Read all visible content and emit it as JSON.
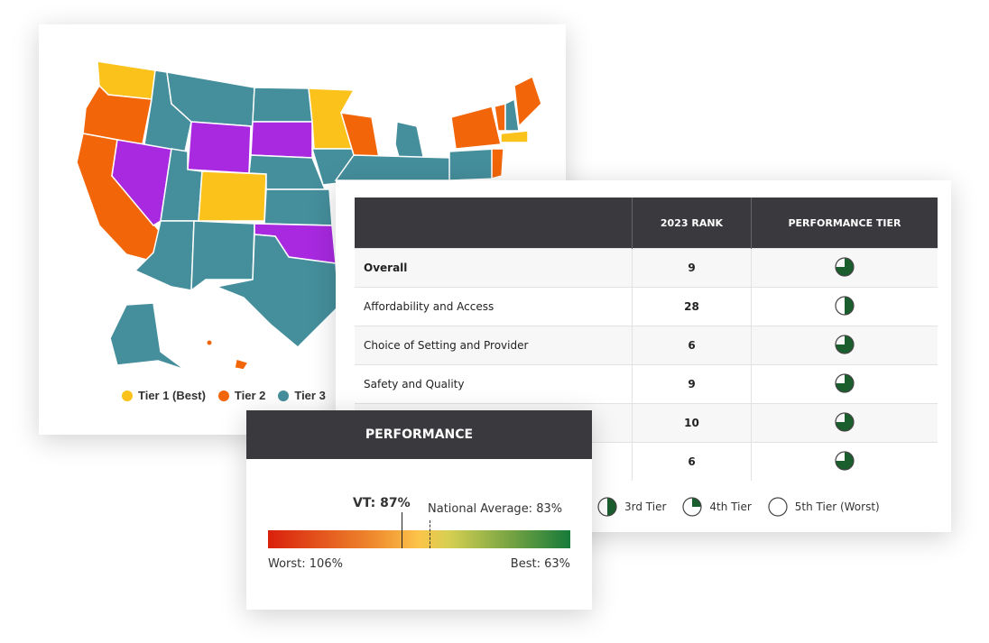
{
  "map": {
    "legend": [
      {
        "label": "Tier 1 (Best)",
        "color": "#fbc21b"
      },
      {
        "label": "Tier 2",
        "color": "#f26509"
      },
      {
        "label": "Tier 3",
        "color": "#458e9c"
      }
    ],
    "other_colors": {
      "tier4": "#a829e0"
    }
  },
  "table": {
    "headers": [
      "",
      "2023 RANK",
      "PERFORMANCE TIER"
    ],
    "rows": [
      {
        "label": "Overall",
        "rank": "9",
        "tier_fill": 0.75,
        "bold": true
      },
      {
        "label": "Affordability and Access",
        "rank": "28",
        "tier_fill": 0.5
      },
      {
        "label": "Choice of Setting and Provider",
        "rank": "6",
        "tier_fill": 0.75
      },
      {
        "label": "Safety and Quality",
        "rank": "9",
        "tier_fill": 0.75
      },
      {
        "label": "",
        "rank": "10",
        "tier_fill": 0.75
      },
      {
        "label": "",
        "rank": "6",
        "tier_fill": 0.75
      }
    ],
    "legend": [
      {
        "label": "3rd Tier",
        "fill": 0.5
      },
      {
        "label": "4th Tier",
        "fill": 0.25
      },
      {
        "label": "5th Tier (Worst)",
        "fill": 0
      }
    ],
    "accent": "#1b5e2e"
  },
  "performance": {
    "title": "PERFORMANCE",
    "state_label": "VT: 87%",
    "state_value": 87,
    "national_label": "National Average: 83%",
    "national_value": 83,
    "worst_label": "Worst: 106%",
    "worst_value": 106,
    "best_label": "Best: 63%",
    "best_value": 63
  }
}
